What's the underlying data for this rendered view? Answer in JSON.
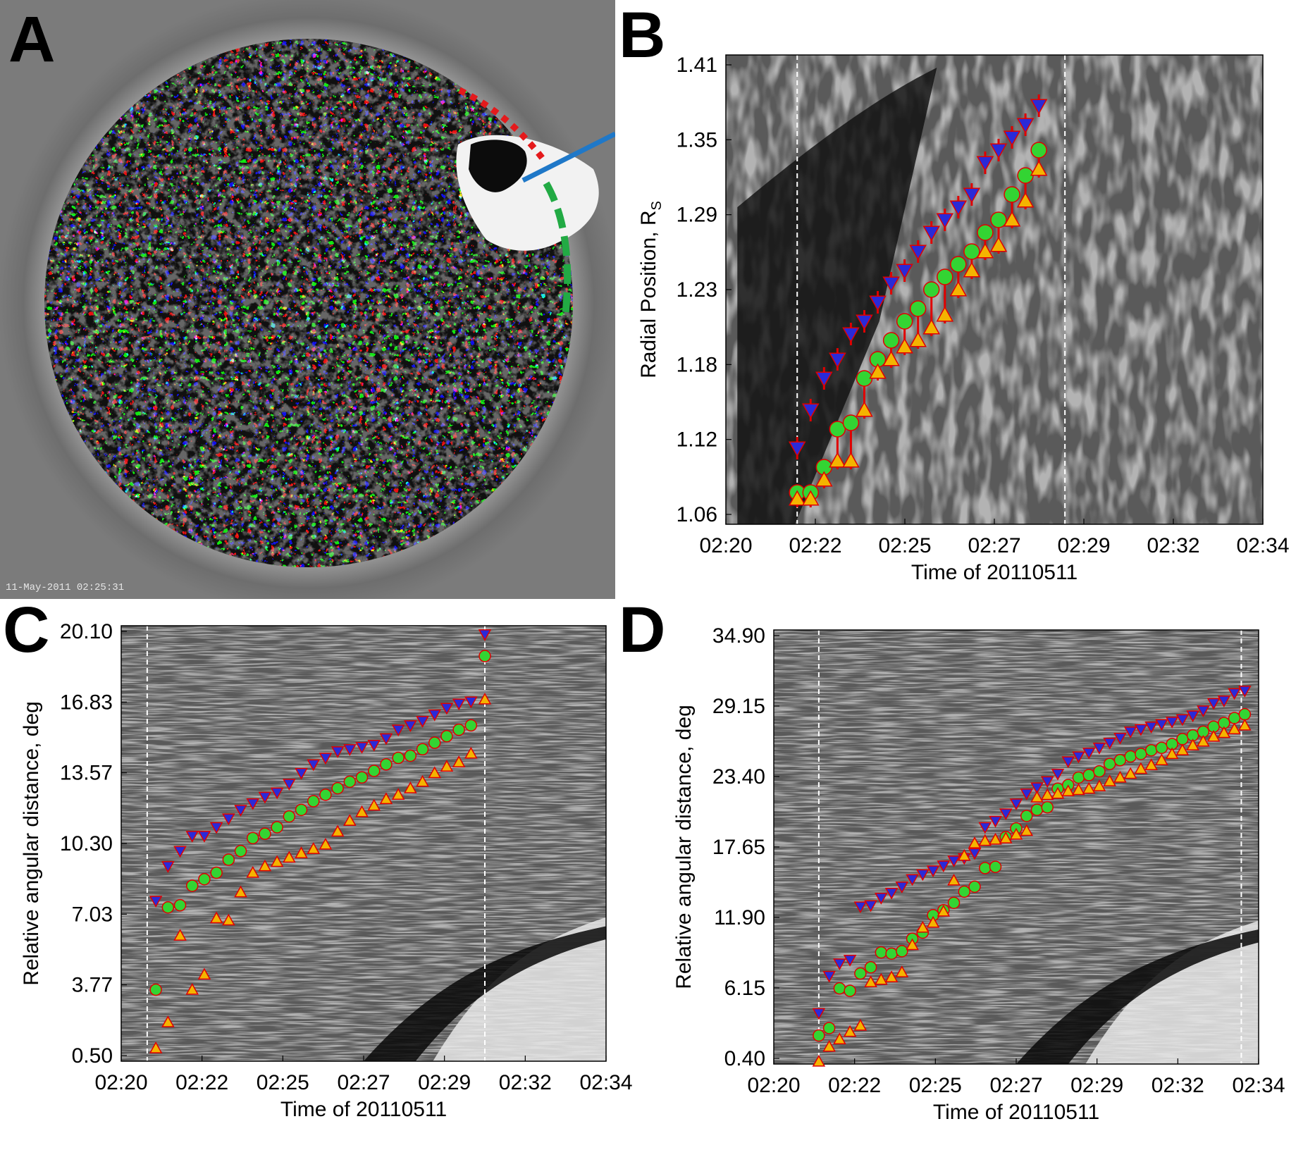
{
  "panels": {
    "A": {
      "letter": "A",
      "timestamp": "11-May-2011 02:25:31",
      "overlay_lines": [
        {
          "style": "dotted",
          "color": "#e41a1c"
        },
        {
          "style": "solid",
          "color": "#1f78c8"
        },
        {
          "style": "dashed",
          "color": "#22aa44"
        }
      ]
    },
    "B": {
      "letter": "B"
    },
    "C": {
      "letter": "C"
    },
    "D": {
      "letter": "D"
    }
  },
  "colors": {
    "upper_marker_fill": "#2a2ad8",
    "center_marker_fill": "#33d433",
    "lower_marker_fill": "#f4b400",
    "error_bar": "#e00000",
    "guide_line": "#ffffff"
  },
  "chart_data": [
    {
      "panel": "B",
      "type": "scatter",
      "background": "time-distance image (grayscale)",
      "xlabel": "Time of 20110511",
      "ylabel": "Radial Position, R",
      "ylabel_subscript": "S",
      "xticks": [
        "02:20",
        "02:22",
        "02:25",
        "02:27",
        "02:29",
        "02:32",
        "02:34"
      ],
      "yticks": [
        "1.06",
        "1.12",
        "1.18",
        "1.23",
        "1.29",
        "1.35",
        "1.41"
      ],
      "xlim": [
        0,
        14
      ],
      "ylim": [
        1.05,
        1.42
      ],
      "vertical_dashed_lines_x": [
        1.86,
        8.84
      ],
      "x": [
        1.86,
        2.21,
        2.56,
        2.91,
        3.26,
        3.61,
        3.96,
        4.31,
        4.66,
        5.01,
        5.36,
        5.71,
        6.06,
        6.41,
        6.76,
        7.11,
        7.46,
        7.81,
        8.16
      ],
      "series": [
        {
          "marker": "down-triangle",
          "values": [
            1.11,
            1.14,
            1.165,
            1.18,
            1.2,
            1.21,
            1.225,
            1.24,
            1.25,
            1.265,
            1.28,
            1.29,
            1.3,
            1.31,
            1.335,
            1.345,
            1.355,
            1.365,
            1.38
          ]
        },
        {
          "marker": "circle",
          "values": [
            1.075,
            1.075,
            1.095,
            1.125,
            1.13,
            1.165,
            1.18,
            1.195,
            1.21,
            1.22,
            1.235,
            1.245,
            1.255,
            1.265,
            1.28,
            1.29,
            1.31,
            1.325,
            1.345
          ]
        },
        {
          "marker": "up-triangle",
          "values": [
            1.07,
            1.07,
            1.085,
            1.1,
            1.1,
            1.14,
            1.17,
            1.18,
            1.19,
            1.195,
            1.205,
            1.215,
            1.235,
            1.25,
            1.265,
            1.27,
            1.29,
            1.305,
            1.33
          ]
        }
      ]
    },
    {
      "panel": "C",
      "type": "scatter",
      "background": "time-distance image (grayscale)",
      "xlabel": "Time of 20110511",
      "ylabel": "Relative angular distance, deg",
      "xticks": [
        "02:20",
        "02:22",
        "02:25",
        "02:27",
        "02:29",
        "02:32",
        "02:34"
      ],
      "yticks": [
        "0.50",
        "3.77",
        "7.03",
        "10.30",
        "13.57",
        "16.83",
        "20.10"
      ],
      "xlim": [
        0,
        14
      ],
      "ylim": [
        0.3,
        20.4
      ],
      "vertical_dashed_lines_x": [
        0.75,
        10.5
      ],
      "x": [
        1.0,
        1.35,
        1.7,
        2.05,
        2.4,
        2.75,
        3.1,
        3.45,
        3.8,
        4.15,
        4.5,
        4.85,
        5.2,
        5.55,
        5.9,
        6.25,
        6.6,
        6.95,
        7.3,
        7.65,
        8.0,
        8.35,
        8.7,
        9.05,
        9.4,
        9.75,
        10.1,
        10.5
      ],
      "series": [
        {
          "marker": "down-triangle",
          "values": [
            7.7,
            9.3,
            10.0,
            10.7,
            10.7,
            11.1,
            11.5,
            11.9,
            12.2,
            12.5,
            12.7,
            13.1,
            13.6,
            14.0,
            14.3,
            14.6,
            14.7,
            14.8,
            14.9,
            15.2,
            15.6,
            15.8,
            16.0,
            16.3,
            16.6,
            16.8,
            16.9,
            20.0
          ]
        },
        {
          "marker": "circle",
          "values": [
            3.6,
            7.4,
            7.5,
            8.4,
            8.7,
            9.0,
            9.6,
            10.0,
            10.6,
            10.8,
            11.1,
            11.6,
            11.9,
            12.3,
            12.6,
            12.9,
            13.2,
            13.4,
            13.7,
            14.0,
            14.3,
            14.4,
            14.7,
            15.0,
            15.3,
            15.6,
            15.8,
            19.0
          ]
        },
        {
          "marker": "up-triangle",
          "values": [
            0.9,
            2.1,
            6.1,
            3.6,
            4.3,
            6.9,
            6.8,
            8.1,
            9.0,
            9.3,
            9.5,
            9.7,
            9.9,
            10.1,
            10.3,
            10.9,
            11.4,
            11.8,
            12.1,
            12.4,
            12.6,
            12.9,
            13.2,
            13.6,
            13.9,
            14.1,
            14.5,
            17.0
          ]
        }
      ]
    },
    {
      "panel": "D",
      "type": "scatter",
      "background": "time-distance image (grayscale)",
      "xlabel": "Time of 20110511",
      "ylabel": "Relative angular distance, deg",
      "xticks": [
        "02:20",
        "02:22",
        "02:25",
        "02:27",
        "02:29",
        "02:32",
        "02:34"
      ],
      "yticks": [
        "0.40",
        "6.15",
        "11.90",
        "17.65",
        "23.40",
        "29.15",
        "34.90"
      ],
      "xlim": [
        0,
        14
      ],
      "ylim": [
        0.2,
        35.2
      ],
      "vertical_dashed_lines_x": [
        1.3,
        13.5
      ],
      "x": [
        1.3,
        1.6,
        1.9,
        2.2,
        2.5,
        2.8,
        3.1,
        3.4,
        3.7,
        4.0,
        4.3,
        4.6,
        4.9,
        5.2,
        5.5,
        5.8,
        6.1,
        6.4,
        6.7,
        7.0,
        7.3,
        7.6,
        7.9,
        8.2,
        8.5,
        8.8,
        9.1,
        9.4,
        9.7,
        10.0,
        10.3,
        10.6,
        10.9,
        11.2,
        11.5,
        11.8,
        12.1,
        12.4,
        12.7,
        13.0,
        13.3,
        13.6
      ],
      "series": [
        {
          "marker": "down-triangle",
          "values": [
            4.3,
            7.3,
            8.3,
            8.6,
            12.9,
            13.0,
            13.6,
            14.0,
            14.5,
            15.1,
            15.5,
            15.8,
            16.2,
            16.6,
            16.8,
            17.2,
            19.3,
            19.8,
            20.4,
            21.2,
            22.0,
            22.5,
            23.0,
            23.6,
            24.6,
            25.0,
            25.3,
            25.7,
            26.1,
            26.5,
            27.0,
            27.2,
            27.4,
            27.6,
            27.8,
            28.0,
            28.3,
            28.7,
            29.3,
            29.5,
            30.1,
            30.3
          ]
        },
        {
          "marker": "circle",
          "values": [
            2.5,
            3.1,
            6.3,
            6.1,
            7.5,
            8.0,
            9.2,
            9.1,
            9.3,
            10.3,
            10.8,
            12.2,
            12.6,
            13.2,
            14.1,
            14.5,
            16.0,
            16.1,
            18.5,
            19.2,
            20.2,
            20.7,
            20.9,
            22.4,
            22.7,
            23.3,
            23.5,
            23.8,
            24.4,
            24.7,
            25.0,
            25.2,
            25.5,
            25.7,
            26.0,
            26.4,
            26.7,
            27.0,
            27.4,
            27.7,
            28.1,
            28.4
          ]
        },
        {
          "marker": "up-triangle",
          "values": [
            0.4,
            1.6,
            2.2,
            2.8,
            3.3,
            6.8,
            7.0,
            7.2,
            7.6,
            9.8,
            11.2,
            11.6,
            12.5,
            15.0,
            17.0,
            18.0,
            18.2,
            18.3,
            18.4,
            18.7,
            19.0,
            21.7,
            21.9,
            22.0,
            22.2,
            22.3,
            22.4,
            22.6,
            23.0,
            23.3,
            23.6,
            24.0,
            24.3,
            24.7,
            25.2,
            25.5,
            25.9,
            26.2,
            26.6,
            26.9,
            27.2,
            27.5
          ]
        }
      ]
    }
  ]
}
